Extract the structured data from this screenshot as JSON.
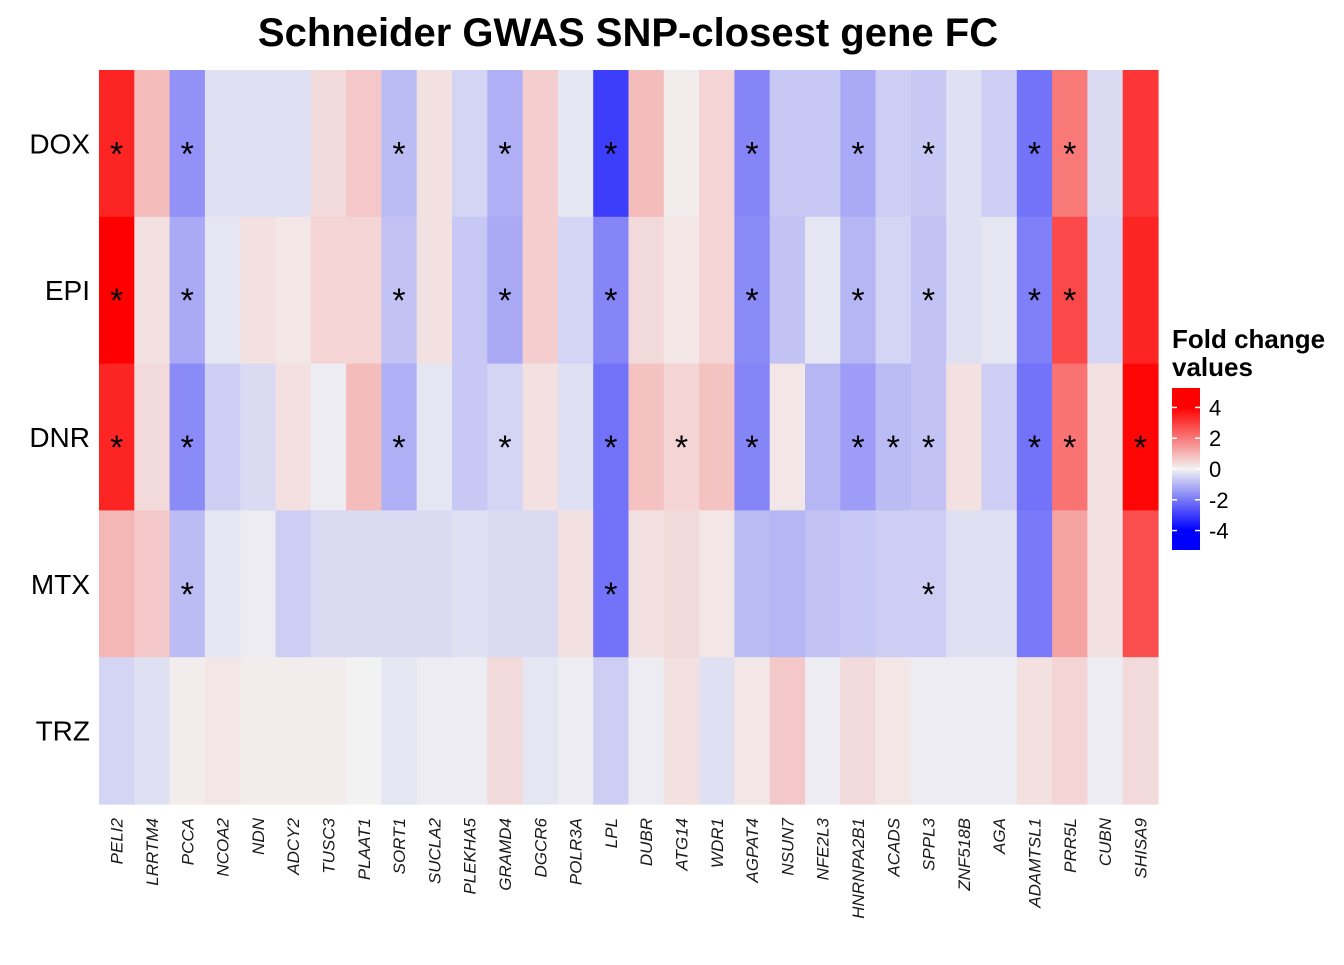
{
  "chart_data": {
    "type": "heatmap",
    "title": "Schneider GWAS SNP-closest gene FC",
    "rows": [
      "DOX",
      "EPI",
      "DNR",
      "MTX",
      "TRZ"
    ],
    "columns": [
      "PELI2",
      "LRRTM4",
      "PCCA",
      "NCOA2",
      "NDN",
      "ADCY2",
      "TUSC3",
      "PLAAT1",
      "SORT1",
      "SUCLA2",
      "PLEKHA5",
      "GRAMD4",
      "DGCR6",
      "POLR3A",
      "LPL",
      "DUBR",
      "ATG14",
      "WDR1",
      "AGPAT4",
      "NSUN7",
      "NFE2L3",
      "HNRNPA2B1",
      "ACADS",
      "SPPL3",
      "ZNF518B",
      "AGA",
      "ADAMTSL1",
      "PRR5L",
      "CUBN",
      "SHISA9"
    ],
    "values": [
      [
        3.4,
        0.9,
        -1.6,
        -0.3,
        -0.3,
        -0.3,
        0.4,
        0.7,
        -0.9,
        0.3,
        -0.5,
        -1.1,
        0.6,
        -0.2,
        -3.0,
        0.9,
        0.1,
        0.5,
        -1.8,
        -0.7,
        -0.7,
        -1.2,
        -0.6,
        -0.7,
        -0.3,
        -0.6,
        -2.1,
        2.0,
        -0.4,
        3.1
      ],
      [
        4.0,
        0.3,
        -1.2,
        -0.2,
        0.3,
        0.2,
        0.5,
        0.5,
        -0.8,
        0.3,
        -0.7,
        -1.2,
        0.6,
        -0.5,
        -1.8,
        0.4,
        0.2,
        0.5,
        -1.7,
        -0.8,
        -0.2,
        -1.0,
        -0.5,
        -0.8,
        -0.3,
        -0.2,
        -1.9,
        2.8,
        -0.5,
        3.4
      ],
      [
        3.4,
        0.4,
        -1.7,
        -0.6,
        -0.4,
        0.3,
        -0.1,
        0.9,
        -1.1,
        -0.2,
        -0.7,
        -0.5,
        0.3,
        -0.3,
        -2.1,
        0.8,
        0.5,
        0.8,
        -1.8,
        0.2,
        -1.0,
        -1.4,
        -0.9,
        -0.8,
        0.3,
        -0.6,
        -2.1,
        2.1,
        0.3,
        3.9
      ],
      [
        1.0,
        0.7,
        -0.9,
        -0.2,
        -0.1,
        -0.6,
        -0.4,
        -0.4,
        -0.4,
        -0.4,
        -0.3,
        -0.4,
        -0.4,
        0.3,
        -2.1,
        0.3,
        0.4,
        0.2,
        -0.9,
        -1.0,
        -0.8,
        -0.7,
        -0.6,
        -0.6,
        -0.3,
        -0.3,
        -2.0,
        1.3,
        0.3,
        2.7
      ],
      [
        -0.5,
        -0.3,
        0.1,
        0.2,
        0.1,
        0.1,
        0.1,
        0.0,
        -0.2,
        -0.1,
        -0.1,
        0.4,
        -0.2,
        -0.1,
        -0.6,
        -0.1,
        0.3,
        -0.3,
        0.2,
        0.7,
        -0.1,
        0.4,
        0.2,
        -0.1,
        -0.1,
        -0.1,
        0.3,
        0.5,
        -0.1,
        0.4
      ]
    ],
    "significant": [
      [
        "PELI2",
        "PCCA",
        "SORT1",
        "GRAMD4",
        "LPL",
        "AGPAT4",
        "HNRNPA2B1",
        "SPPL3",
        "ADAMTSL1",
        "PRR5L"
      ],
      [
        "PELI2",
        "PCCA",
        "SORT1",
        "GRAMD4",
        "LPL",
        "AGPAT4",
        "HNRNPA2B1",
        "SPPL3",
        "ADAMTSL1",
        "PRR5L"
      ],
      [
        "PELI2",
        "PCCA",
        "SORT1",
        "GRAMD4",
        "LPL",
        "ATG14",
        "AGPAT4",
        "HNRNPA2B1",
        "ACADS",
        "SPPL3",
        "ADAMTSL1",
        "PRR5L",
        "SHISA9"
      ],
      [
        "PCCA",
        "LPL",
        "SPPL3"
      ],
      []
    ],
    "significance_marker": "*",
    "legend": {
      "title_line1": "Fold change",
      "title_line2": "values",
      "placement": "right",
      "ticks": [
        4,
        2,
        0,
        -2,
        -4
      ],
      "tick_labels": [
        "4",
        "2",
        "0",
        "-2",
        "-4"
      ],
      "range": [
        -4,
        4
      ]
    },
    "colors": {
      "high": "#ff0000",
      "mid": "#f2f2f2",
      "low": "#0000ff"
    }
  }
}
